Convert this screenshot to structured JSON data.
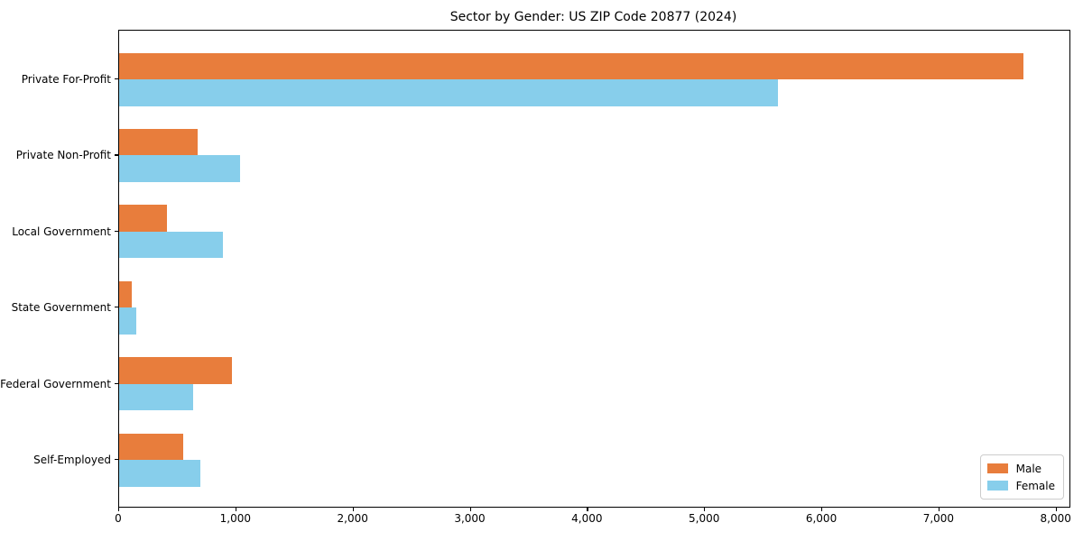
{
  "title": "Sector by Gender: US ZIP Code 20877 (2024)",
  "chart_data": {
    "type": "bar",
    "orientation": "horizontal",
    "title": "Sector by Gender: US ZIP Code 20877 (2024)",
    "categories": [
      "Private For-Profit",
      "Private Non-Profit",
      "Local Government",
      "State Government",
      "Federal Government",
      "Self-Employed"
    ],
    "series": [
      {
        "name": "Male",
        "color": "#e87d3c",
        "values": [
          7720,
          670,
          410,
          110,
          965,
          550
        ]
      },
      {
        "name": "Female",
        "color": "#87ceeb",
        "values": [
          5620,
          1030,
          885,
          150,
          630,
          690
        ]
      }
    ],
    "xlabel": "",
    "ylabel": "",
    "xlim": [
      0,
      8110
    ],
    "x_ticks": [
      {
        "value": 0,
        "label": "0"
      },
      {
        "value": 1000,
        "label": "1,000"
      },
      {
        "value": 2000,
        "label": "2,000"
      },
      {
        "value": 3000,
        "label": "3,000"
      },
      {
        "value": 4000,
        "label": "4,000"
      },
      {
        "value": 5000,
        "label": "5,000"
      },
      {
        "value": 6000,
        "label": "6,000"
      },
      {
        "value": 7000,
        "label": "7,000"
      },
      {
        "value": 8000,
        "label": "8,000"
      }
    ],
    "grid": false,
    "legend": {
      "position": "lower right",
      "entries": [
        "Male",
        "Female"
      ]
    }
  },
  "colors": {
    "background": "#ffffff",
    "spine": "#000000",
    "legend_border": "#cccccc"
  }
}
